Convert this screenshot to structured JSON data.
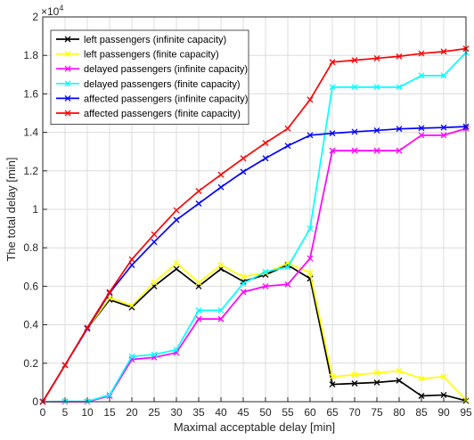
{
  "chart_data": {
    "type": "line",
    "title": "",
    "xlabel": "Maximal acceptable delay [min]",
    "ylabel": "The total delay [min]",
    "y_exponent_label": "×10",
    "y_exponent_power": "4",
    "xlim": [
      0,
      95
    ],
    "ylim": [
      0,
      2
    ],
    "grid": true,
    "legend_position": "top-left",
    "x": [
      0,
      5,
      10,
      15,
      20,
      25,
      30,
      35,
      40,
      45,
      50,
      55,
      60,
      65,
      70,
      75,
      80,
      85,
      90,
      95
    ],
    "x_ticks": [
      "0",
      "5",
      "10",
      "15",
      "20",
      "25",
      "30",
      "35",
      "40",
      "45",
      "50",
      "55",
      "60",
      "65",
      "70",
      "75",
      "80",
      "85",
      "90",
      "95"
    ],
    "y_ticks": [
      "0",
      "0.2",
      "0.4",
      "0.6",
      "0.8",
      "1",
      "1.2",
      "1.4",
      "1.6",
      "1.8",
      "2"
    ],
    "series": [
      {
        "name": "left passengers (infinite capacity)",
        "color": "#000000",
        "values": [
          0,
          0.19,
          0.38,
          0.53,
          0.49,
          0.6,
          0.69,
          0.6,
          0.69,
          0.625,
          0.66,
          0.71,
          0.64,
          0.09,
          0.095,
          0.1,
          0.11,
          0.03,
          0.035,
          0.005
        ]
      },
      {
        "name": "left passengers (finite capacity)",
        "color": "#ffff00",
        "values": [
          0,
          0.19,
          0.38,
          0.54,
          0.5,
          0.62,
          0.72,
          0.62,
          0.71,
          0.65,
          0.67,
          0.72,
          0.67,
          0.13,
          0.14,
          0.15,
          0.16,
          0.12,
          0.13,
          0.01
        ]
      },
      {
        "name": "delayed passengers (infinite capacity)",
        "color": "#ff00ff",
        "values": [
          0,
          0.0,
          0.0,
          0.03,
          0.22,
          0.23,
          0.255,
          0.43,
          0.43,
          0.57,
          0.6,
          0.61,
          0.745,
          1.305,
          1.305,
          1.305,
          1.305,
          1.385,
          1.385,
          1.42
        ]
      },
      {
        "name": "delayed passengers (finite capacity)",
        "color": "#00ffff",
        "values": [
          0,
          0.002,
          0.002,
          0.035,
          0.235,
          0.245,
          0.27,
          0.475,
          0.475,
          0.615,
          0.675,
          0.7,
          0.9,
          1.635,
          1.635,
          1.635,
          1.635,
          1.695,
          1.695,
          1.815
        ]
      },
      {
        "name": "affected passengers (infinite capacity)",
        "color": "#0000ff",
        "values": [
          0,
          0.19,
          0.38,
          0.565,
          0.71,
          0.83,
          0.945,
          1.03,
          1.115,
          1.195,
          1.265,
          1.33,
          1.385,
          1.395,
          1.403,
          1.41,
          1.418,
          1.422,
          1.425,
          1.43
        ]
      },
      {
        "name": "affected passengers (finite capacity)",
        "color": "#ff0000",
        "values": [
          0,
          0.19,
          0.385,
          0.57,
          0.74,
          0.87,
          0.995,
          1.095,
          1.18,
          1.265,
          1.345,
          1.42,
          1.57,
          1.765,
          1.775,
          1.785,
          1.795,
          1.81,
          1.82,
          1.835
        ]
      }
    ]
  }
}
